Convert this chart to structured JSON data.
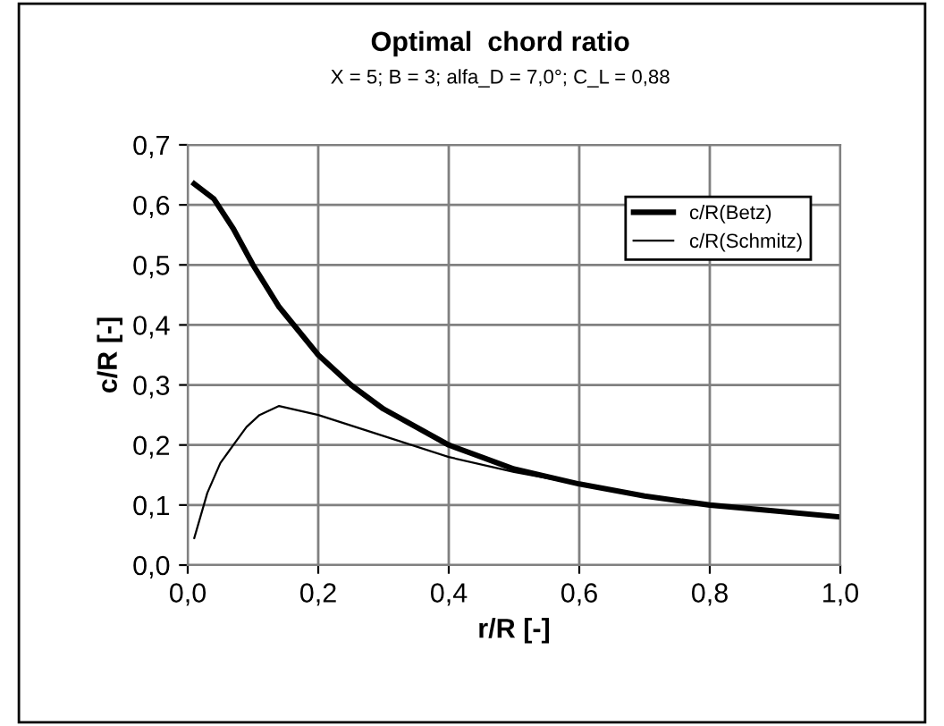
{
  "chart_data": {
    "type": "line",
    "title": "Optimal  chord ratio",
    "subtitle": "X = 5; B = 3; alfa_D = 7,0°; C_L = 0,88",
    "xlabel": "r/R [-]",
    "ylabel": "c/R [-]",
    "series": [
      {
        "name": "c/R(Betz)",
        "color": "#000000",
        "x": [
          0.01,
          0.04,
          0.07,
          0.1,
          0.14,
          0.2,
          0.25,
          0.3,
          0.4,
          0.5,
          0.6,
          0.7,
          0.8,
          0.9,
          1.0
        ],
        "values": [
          0.635,
          0.61,
          0.56,
          0.5,
          0.43,
          0.35,
          0.3,
          0.26,
          0.2,
          0.16,
          0.135,
          0.115,
          0.1,
          0.09,
          0.08
        ]
      },
      {
        "name": "c/R(Schmitz)",
        "color": "#000000",
        "x": [
          0.01,
          0.03,
          0.05,
          0.07,
          0.09,
          0.11,
          0.14,
          0.2,
          0.3,
          0.4,
          0.5,
          0.6,
          0.7,
          0.8,
          0.9,
          1.0
        ],
        "values": [
          0.045,
          0.12,
          0.17,
          0.2,
          0.23,
          0.25,
          0.265,
          0.25,
          0.215,
          0.18,
          0.155,
          0.135,
          0.115,
          0.1,
          0.09,
          0.08
        ]
      }
    ],
    "xlim": [
      0,
      1
    ],
    "ylim": [
      0,
      0.7
    ],
    "xticks": [
      {
        "value": 0,
        "label": "0,0"
      },
      {
        "value": 0.2,
        "label": "0,2"
      },
      {
        "value": 0.4,
        "label": "0,4"
      },
      {
        "value": 0.6,
        "label": "0,6"
      },
      {
        "value": 0.8,
        "label": "0,8"
      },
      {
        "value": 1,
        "label": "1,0"
      }
    ],
    "yticks": [
      {
        "value": 0,
        "label": "0,0"
      },
      {
        "value": 0.1,
        "label": "0,1"
      },
      {
        "value": 0.2,
        "label": "0,2"
      },
      {
        "value": 0.3,
        "label": "0,3"
      },
      {
        "value": 0.4,
        "label": "0,4"
      },
      {
        "value": 0.5,
        "label": "0,5"
      },
      {
        "value": 0.6,
        "label": "0,6"
      },
      {
        "value": 0.7,
        "label": "0,7"
      }
    ],
    "grid": true,
    "legend": "top right"
  }
}
